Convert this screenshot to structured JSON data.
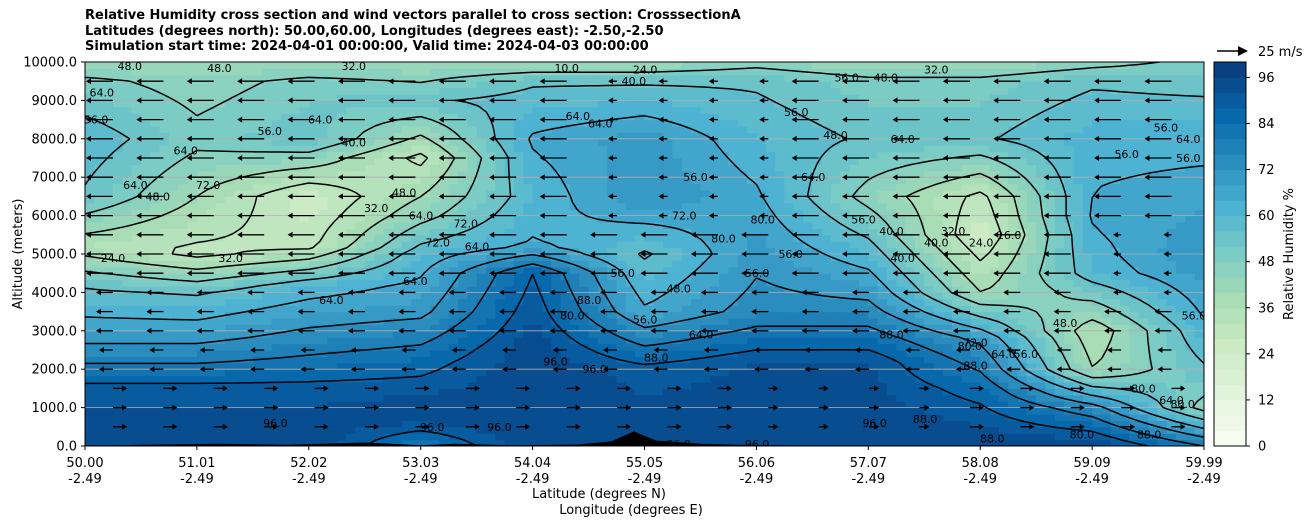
{
  "title_lines": [
    "Relative Humidity cross section and wind vectors parallel to cross section: CrosssectionA",
    "Latitudes (degrees north): 50.00,60.00, Longitudes (degrees east): -2.50,-2.50",
    "Simulation start time: 2024-04-01 00:00:00, Valid time: 2024-04-03 00:00:00"
  ],
  "chart_data": {
    "type": "heatmap",
    "title": "Relative Humidity cross section and wind vectors parallel to cross section: CrosssectionA",
    "xlabel": "Latitude (degrees N)",
    "xlabel2": "Longitude (degrees E)",
    "ylabel": "Altitude (meters)",
    "colorbar_label": "Relative Humidity %",
    "quiver_key": "25 m/s",
    "ylim": [
      0,
      10000
    ],
    "xlim": [
      50.0,
      59.99
    ],
    "y_ticks": [
      "0.0",
      "1000.0",
      "2000.0",
      "3000.0",
      "4000.0",
      "5000.0",
      "6000.0",
      "7000.0",
      "8000.0",
      "9000.0",
      "10000.0"
    ],
    "x_ticks": [
      {
        "lat": "50.00",
        "lon": "-2.49"
      },
      {
        "lat": "51.01",
        "lon": "-2.49"
      },
      {
        "lat": "52.02",
        "lon": "-2.49"
      },
      {
        "lat": "53.03",
        "lon": "-2.49"
      },
      {
        "lat": "54.04",
        "lon": "-2.49"
      },
      {
        "lat": "55.05",
        "lon": "-2.49"
      },
      {
        "lat": "56.06",
        "lon": "-2.49"
      },
      {
        "lat": "57.07",
        "lon": "-2.49"
      },
      {
        "lat": "58.08",
        "lon": "-2.49"
      },
      {
        "lat": "59.09",
        "lon": "-2.49"
      },
      {
        "lat": "59.99",
        "lon": "-2.49"
      }
    ],
    "colorbar_ticks": [
      "0",
      "12",
      "24",
      "36",
      "48",
      "60",
      "72",
      "84",
      "96"
    ],
    "colorbar_range": [
      0,
      100
    ],
    "colormap": [
      "#f7fcf0",
      "#e0f3db",
      "#ccebc5",
      "#a8ddb5",
      "#7bccc4",
      "#4eb3d3",
      "#2b8cbe",
      "#0868ac",
      "#084081"
    ],
    "rh_profile": [
      {
        "lat": 50.0,
        "bands": [
          [
            0,
            96
          ],
          [
            1500,
            90
          ],
          [
            2800,
            70
          ],
          [
            4200,
            55
          ],
          [
            5200,
            35
          ],
          [
            6500,
            55
          ],
          [
            8000,
            60
          ],
          [
            9500,
            50
          ],
          [
            10000,
            40
          ]
        ]
      },
      {
        "lat": 51.0,
        "bands": [
          [
            0,
            96
          ],
          [
            1500,
            90
          ],
          [
            2800,
            70
          ],
          [
            4000,
            55
          ],
          [
            5000,
            30
          ],
          [
            6500,
            40
          ],
          [
            8000,
            50
          ],
          [
            9500,
            45
          ],
          [
            10000,
            40
          ]
        ]
      },
      {
        "lat": 52.0,
        "bands": [
          [
            0,
            96
          ],
          [
            1500,
            90
          ],
          [
            2800,
            75
          ],
          [
            4200,
            60
          ],
          [
            5200,
            30
          ],
          [
            6500,
            25
          ],
          [
            8000,
            55
          ],
          [
            9500,
            50
          ],
          [
            10000,
            40
          ]
        ]
      },
      {
        "lat": 53.0,
        "bands": [
          [
            0,
            80
          ],
          [
            800,
            96
          ],
          [
            2200,
            85
          ],
          [
            3500,
            70
          ],
          [
            5000,
            60
          ],
          [
            6000,
            45
          ],
          [
            7500,
            30
          ],
          [
            9000,
            55
          ],
          [
            10000,
            40
          ]
        ]
      },
      {
        "lat": 54.0,
        "bands": [
          [
            0,
            96
          ],
          [
            2500,
            95
          ],
          [
            4500,
            88
          ],
          [
            5200,
            65
          ],
          [
            6500,
            60
          ],
          [
            8000,
            65
          ],
          [
            9500,
            55
          ],
          [
            10000,
            40
          ]
        ]
      },
      {
        "lat": 55.0,
        "bands": [
          [
            0,
            96
          ],
          [
            2000,
            90
          ],
          [
            3500,
            65
          ],
          [
            5000,
            55
          ],
          [
            6500,
            72
          ],
          [
            8000,
            70
          ],
          [
            9500,
            55
          ],
          [
            10000,
            40
          ]
        ]
      },
      {
        "lat": 56.0,
        "bands": [
          [
            0,
            96
          ],
          [
            2200,
            92
          ],
          [
            3500,
            75
          ],
          [
            5000,
            70
          ],
          [
            6500,
            65
          ],
          [
            8000,
            60
          ],
          [
            9500,
            55
          ],
          [
            10000,
            45
          ]
        ]
      },
      {
        "lat": 57.0,
        "bands": [
          [
            0,
            96
          ],
          [
            2200,
            92
          ],
          [
            3500,
            75
          ],
          [
            5000,
            60
          ],
          [
            6500,
            45
          ],
          [
            8000,
            55
          ],
          [
            9500,
            50
          ],
          [
            10000,
            40
          ]
        ]
      },
      {
        "lat": 58.0,
        "bands": [
          [
            0,
            96
          ],
          [
            1500,
            85
          ],
          [
            2800,
            70
          ],
          [
            4000,
            40
          ],
          [
            5500,
            25
          ],
          [
            6500,
            30
          ],
          [
            8000,
            55
          ],
          [
            9500,
            50
          ],
          [
            10000,
            40
          ]
        ]
      },
      {
        "lat": 59.0,
        "bands": [
          [
            0,
            96
          ],
          [
            1000,
            75
          ],
          [
            2000,
            40
          ],
          [
            3000,
            35
          ],
          [
            4500,
            60
          ],
          [
            6000,
            65
          ],
          [
            8000,
            62
          ],
          [
            9500,
            55
          ],
          [
            10000,
            45
          ]
        ]
      },
      {
        "lat": 59.99,
        "bands": [
          [
            0,
            80
          ],
          [
            1000,
            45
          ],
          [
            2000,
            55
          ],
          [
            3500,
            65
          ],
          [
            5000,
            72
          ],
          [
            7000,
            65
          ],
          [
            8500,
            60
          ],
          [
            10000,
            50
          ]
        ]
      }
    ],
    "contour_labels": [
      {
        "text": "64.0",
        "lat": 50.15,
        "alt": 9200
      },
      {
        "text": "56.0",
        "lat": 50.1,
        "alt": 8500
      },
      {
        "text": "64.0",
        "lat": 50.45,
        "alt": 6800
      },
      {
        "text": "24.0",
        "lat": 50.25,
        "alt": 4900
      },
      {
        "text": "48.0",
        "lat": 50.65,
        "alt": 6500
      },
      {
        "text": "64.0",
        "lat": 50.9,
        "alt": 7700
      },
      {
        "text": "72.0",
        "lat": 51.1,
        "alt": 6800
      },
      {
        "text": "32.0",
        "lat": 51.3,
        "alt": 4900
      },
      {
        "text": "56.0",
        "lat": 51.65,
        "alt": 8200
      },
      {
        "text": "40.0",
        "lat": 52.4,
        "alt": 7900
      },
      {
        "text": "32.0",
        "lat": 52.6,
        "alt": 6200
      },
      {
        "text": "48.0",
        "lat": 52.85,
        "alt": 6600
      },
      {
        "text": "64.0",
        "lat": 52.1,
        "alt": 8500
      },
      {
        "text": "64.0",
        "lat": 53.0,
        "alt": 6000
      },
      {
        "text": "72.0",
        "lat": 53.15,
        "alt": 5300
      },
      {
        "text": "72.0",
        "lat": 53.4,
        "alt": 5800
      },
      {
        "text": "64.0",
        "lat": 53.5,
        "alt": 5200
      },
      {
        "text": "64.0",
        "lat": 52.95,
        "alt": 4300
      },
      {
        "text": "64.0",
        "lat": 52.2,
        "alt": 3800
      },
      {
        "text": "80.0",
        "lat": 54.35,
        "alt": 3400
      },
      {
        "text": "88.0",
        "lat": 54.5,
        "alt": 3800
      },
      {
        "text": "96.0",
        "lat": 54.2,
        "alt": 2200
      },
      {
        "text": "96.0",
        "lat": 54.55,
        "alt": 2000
      },
      {
        "text": "64.0",
        "lat": 54.4,
        "alt": 8600
      },
      {
        "text": "64.0",
        "lat": 54.6,
        "alt": 8400
      },
      {
        "text": "56.0",
        "lat": 55.45,
        "alt": 7000
      },
      {
        "text": "56.0",
        "lat": 54.8,
        "alt": 4500
      },
      {
        "text": "56.0",
        "lat": 55.0,
        "alt": 3300
      },
      {
        "text": "48.0",
        "lat": 55.3,
        "alt": 4100
      },
      {
        "text": "64.0",
        "lat": 55.5,
        "alt": 2900
      },
      {
        "text": "88.0",
        "lat": 55.1,
        "alt": 2300
      },
      {
        "text": "72.0",
        "lat": 55.35,
        "alt": 6000
      },
      {
        "text": "80.0",
        "lat": 55.7,
        "alt": 5400
      },
      {
        "text": "80.0",
        "lat": 56.05,
        "alt": 5900
      },
      {
        "text": "56.0",
        "lat": 56.0,
        "alt": 4500
      },
      {
        "text": "56.0",
        "lat": 56.3,
        "alt": 5000
      },
      {
        "text": "64.0",
        "lat": 56.5,
        "alt": 7000
      },
      {
        "text": "48.0",
        "lat": 56.7,
        "alt": 8100
      },
      {
        "text": "56.0",
        "lat": 56.35,
        "alt": 8700
      },
      {
        "text": "56.0",
        "lat": 56.95,
        "alt": 5900
      },
      {
        "text": "40.0",
        "lat": 57.2,
        "alt": 5600
      },
      {
        "text": "40.0",
        "lat": 57.3,
        "alt": 4900
      },
      {
        "text": "40.0",
        "lat": 57.6,
        "alt": 5300
      },
      {
        "text": "32.0",
        "lat": 57.75,
        "alt": 5600
      },
      {
        "text": "24.0",
        "lat": 58.0,
        "alt": 5300
      },
      {
        "text": "16.0",
        "lat": 58.25,
        "alt": 5500
      },
      {
        "text": "64.0",
        "lat": 57.3,
        "alt": 8000
      },
      {
        "text": "88.0",
        "lat": 57.2,
        "alt": 2900
      },
      {
        "text": "80.0",
        "lat": 57.9,
        "alt": 2600
      },
      {
        "text": "72.0",
        "lat": 57.95,
        "alt": 2700
      },
      {
        "text": "64.0",
        "lat": 58.2,
        "alt": 2400
      },
      {
        "text": "56.0",
        "lat": 58.4,
        "alt": 2400
      },
      {
        "text": "48.0",
        "lat": 58.75,
        "alt": 3200
      },
      {
        "text": "56.0",
        "lat": 59.9,
        "alt": 3400
      },
      {
        "text": "88.0",
        "lat": 57.95,
        "alt": 2100
      },
      {
        "text": "96.0",
        "lat": 57.05,
        "alt": 600
      },
      {
        "text": "88.0",
        "lat": 57.5,
        "alt": 700
      },
      {
        "text": "88.0",
        "lat": 58.1,
        "alt": 200
      },
      {
        "text": "80.0",
        "lat": 58.9,
        "alt": 300
      },
      {
        "text": "88.0",
        "lat": 59.5,
        "alt": 300
      },
      {
        "text": "96.0",
        "lat": 55.3,
        "alt": 50
      },
      {
        "text": "96.0",
        "lat": 56.0,
        "alt": 50
      },
      {
        "text": "56.0",
        "lat": 59.65,
        "alt": 8300
      },
      {
        "text": "64.0",
        "lat": 59.85,
        "alt": 8000
      },
      {
        "text": "56.0",
        "lat": 59.3,
        "alt": 7600
      },
      {
        "text": "56.0",
        "lat": 59.85,
        "alt": 7500
      },
      {
        "text": "56.0",
        "lat": 56.8,
        "alt": 9600
      },
      {
        "text": "48.0",
        "lat": 57.15,
        "alt": 9600
      },
      {
        "text": "32.0",
        "lat": 57.6,
        "alt": 9800
      },
      {
        "text": "24.0",
        "lat": 55.0,
        "alt": 9800
      },
      {
        "text": "40.0",
        "lat": 54.9,
        "alt": 9500
      },
      {
        "text": "10.0",
        "lat": 54.3,
        "alt": 9850
      },
      {
        "text": "48.0",
        "lat": 51.2,
        "alt": 9850
      },
      {
        "text": "32.0",
        "lat": 52.4,
        "alt": 9900
      },
      {
        "text": "48.0",
        "lat": 50.4,
        "alt": 9900
      },
      {
        "text": "96.0",
        "lat": 51.7,
        "alt": 600
      },
      {
        "text": "96.0",
        "lat": 53.1,
        "alt": 500
      },
      {
        "text": "96.0",
        "lat": 53.7,
        "alt": 500
      },
      {
        "text": "80.0",
        "lat": 59.8,
        "alt": 1100
      },
      {
        "text": "80.0",
        "lat": 59.45,
        "alt": 1500
      },
      {
        "text": "64.0",
        "lat": 59.7,
        "alt": 1200
      }
    ],
    "wind": {
      "direction": "southward at upper levels, northward near surface",
      "reference_speed": "25 m/s"
    }
  }
}
